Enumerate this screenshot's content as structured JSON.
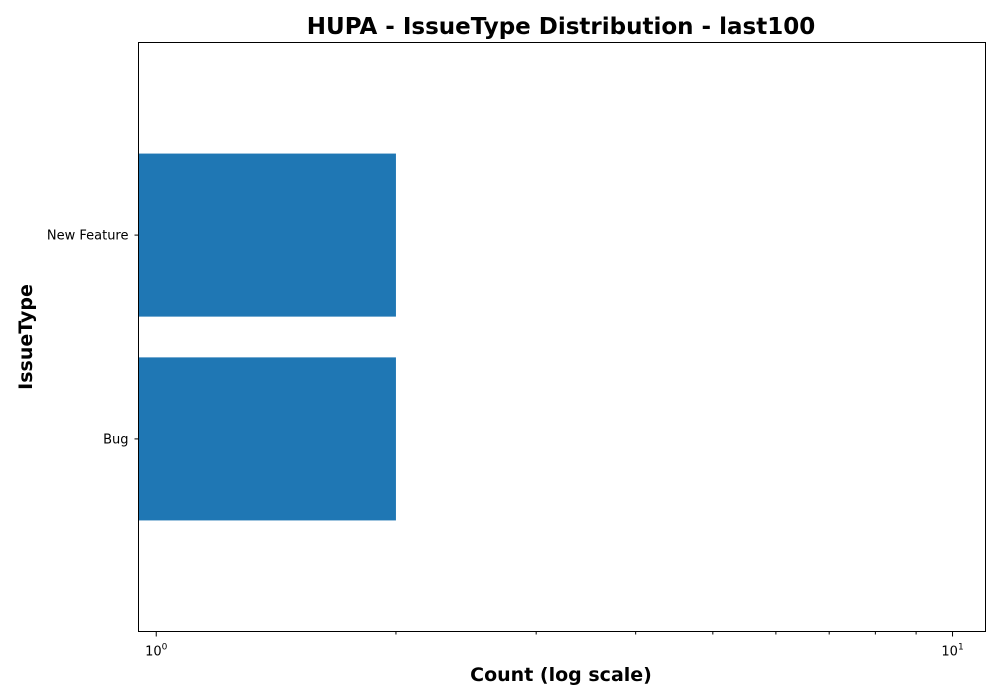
{
  "chart_data": {
    "type": "bar",
    "orientation": "horizontal",
    "title": "HUPA - IssueType Distribution - last100",
    "xlabel": "Count (log scale)",
    "ylabel": "IssueType",
    "x_scale": "log",
    "xlim": [
      0.95,
      11
    ],
    "categories": [
      "Bug",
      "New Feature"
    ],
    "series": [
      {
        "values": [
          2,
          2
        ]
      }
    ],
    "x_major_ticks": [
      {
        "value": 1,
        "base": "10",
        "exponent": "0"
      },
      {
        "value": 10,
        "base": "10",
        "exponent": "1"
      }
    ],
    "grid": false,
    "legend": "none",
    "colors": {
      "bar": "#1f77b4",
      "axis": "#000000",
      "background": "#ffffff"
    }
  }
}
